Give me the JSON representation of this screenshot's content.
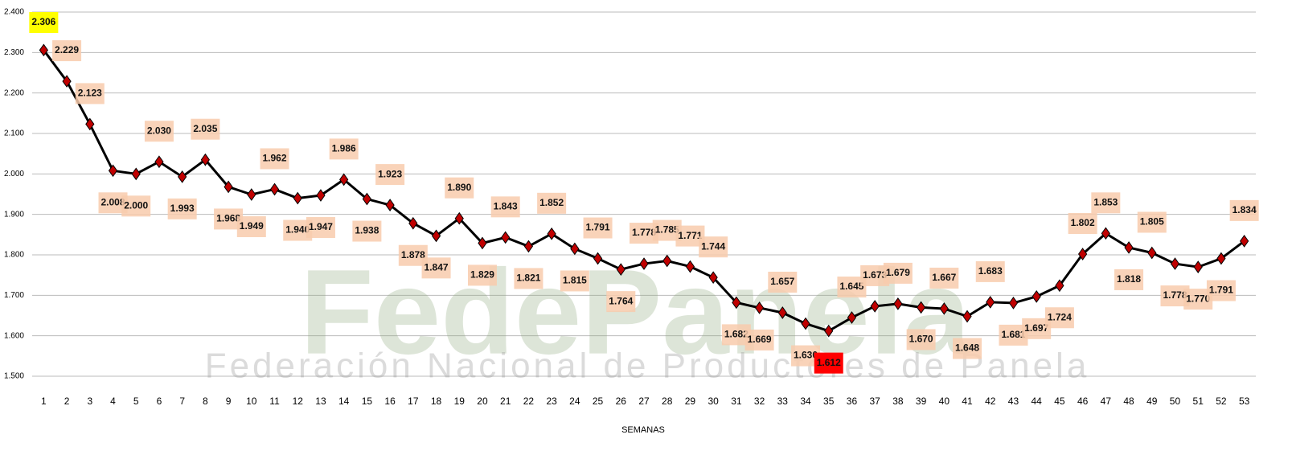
{
  "chart_data": {
    "type": "line",
    "x_label": "SEMANAS",
    "watermark": "FedePanela",
    "watermark_subtitle": "Federación Nacional de Productores de Panela",
    "categories": [
      "1",
      "2",
      "3",
      "4",
      "5",
      "6",
      "7",
      "8",
      "9",
      "10",
      "11",
      "12",
      "13",
      "14",
      "15",
      "16",
      "17",
      "18",
      "19",
      "20",
      "21",
      "22",
      "23",
      "24",
      "25",
      "26",
      "27",
      "28",
      "29",
      "30",
      "31",
      "32",
      "33",
      "34",
      "35",
      "36",
      "37",
      "38",
      "39",
      "40",
      "41",
      "42",
      "43",
      "44",
      "45",
      "46",
      "47",
      "48",
      "49",
      "50",
      "51",
      "52",
      "53"
    ],
    "values": [
      2306,
      2229,
      2123,
      2008,
      2000,
      2030,
      1993,
      2035,
      1968,
      1949,
      1962,
      1940,
      1947,
      1986,
      1938,
      1923,
      1878,
      1847,
      1890,
      1829,
      1843,
      1821,
      1852,
      1815,
      1791,
      1764,
      1778,
      1785,
      1771,
      1744,
      1682,
      1669,
      1657,
      1630,
      1612,
      1645,
      1673,
      1679,
      1670,
      1667,
      1648,
      1683,
      1681,
      1697,
      1724,
      1802,
      1853,
      1818,
      1805,
      1778,
      1770,
      1791,
      1834
    ],
    "value_labels": [
      "2.306",
      "2.229",
      "2.123",
      "2.008",
      "2.000",
      "2.030",
      "1.993",
      "2.035",
      "1.968",
      "1.949",
      "1.962",
      "1.940",
      "1.947",
      "1.986",
      "1.938",
      "1.923",
      "1.878",
      "1.847",
      "1.890",
      "1.829",
      "1.843",
      "1.821",
      "1.852",
      "1.815",
      "1.791",
      "1.764",
      "1.778",
      "1.785",
      "1.771",
      "1.744",
      "1.682",
      "1.669",
      "1.657",
      "1.630",
      "1.612",
      "1.645",
      "1.673",
      "1.679",
      "1.670",
      "1.667",
      "1.648",
      "1.683",
      "1.681",
      "1.697",
      "1.724",
      "1.802",
      "1.853",
      "1.818",
      "1.805",
      "1.778",
      "1.770",
      "1.791",
      "1.834"
    ],
    "color": "#000000",
    "marker_color": "#c00000",
    "label_color": "#f8cbad",
    "max_label_color": "#ffff00",
    "min_label_color": "#ff0000",
    "ylim": [
      1500,
      2400
    ],
    "yticks": [
      {
        "value": 1500,
        "label": "1.500"
      },
      {
        "value": 1600,
        "label": "1.600"
      },
      {
        "value": 1700,
        "label": "1.700"
      },
      {
        "value": 1800,
        "label": "1.800"
      },
      {
        "value": 1900,
        "label": "1.900"
      },
      {
        "value": 2000,
        "label": "2.000"
      },
      {
        "value": 2100,
        "label": "2.100"
      },
      {
        "value": 2200,
        "label": "2.200"
      },
      {
        "value": 2300,
        "label": "2.300"
      },
      {
        "value": 2400,
        "label": "2.400"
      }
    ],
    "grid": true
  }
}
